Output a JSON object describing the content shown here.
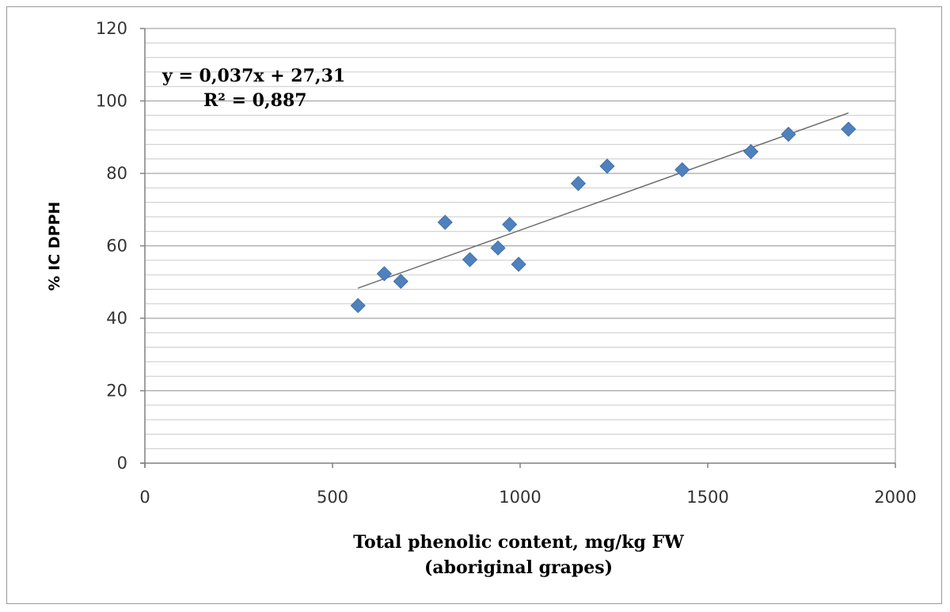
{
  "chart_data": {
    "type": "scatter",
    "title": "",
    "xlabel_line1": "Total phenolic content, mg/kg FW",
    "xlabel_line2": "(aboriginal grapes)",
    "ylabel": "% IC DPPH",
    "xlim": [
      0,
      2000
    ],
    "ylim": [
      0,
      120
    ],
    "x_ticks": [
      "0",
      "500",
      "1000",
      "1500",
      "2000"
    ],
    "y_ticks": [
      "0",
      "20",
      "40",
      "60",
      "80",
      "100",
      "120"
    ],
    "grid": true,
    "legend": "none",
    "marker_color": "#4f81bd",
    "series": [
      {
        "x": [
          568,
          638,
          682,
          800,
          866,
          941,
          972,
          996,
          1155,
          1232,
          1432,
          1615,
          1715,
          1875
        ],
        "y": [
          43.5,
          52.3,
          50.2,
          66.5,
          56.2,
          59.4,
          65.9,
          54.9,
          77.2,
          82.0,
          81.0,
          86.0,
          90.8,
          92.2
        ]
      }
    ],
    "trendline": {
      "slope": 0.037,
      "intercept": 27.31,
      "x_range": [
        568,
        1875
      ],
      "equation": "y = 0,037x + 27,31",
      "r_squared": "R² = 0,887"
    }
  }
}
